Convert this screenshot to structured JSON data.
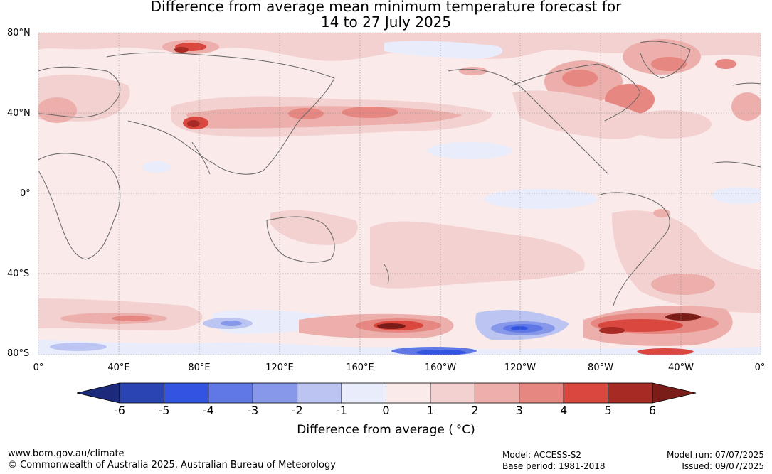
{
  "title_line1": "Difference from average mean minimum temperature forecast for",
  "title_line2": "14 to 27 July 2025",
  "lat_labels": [
    "80°N",
    "40°N",
    "0°",
    "40°S",
    "80°S"
  ],
  "lon_labels": [
    "0°",
    "40°E",
    "80°E",
    "120°E",
    "160°E",
    "160°W",
    "120°W",
    "80°W",
    "40°W",
    "0°"
  ],
  "colorbar": {
    "ticks": [
      "-6",
      "-5",
      "-4",
      "-3",
      "-2",
      "-1",
      "0",
      "1",
      "2",
      "3",
      "4",
      "5",
      "6"
    ],
    "label": "Difference from average (",
    "label_unit": "°C)",
    "colors": {
      "below_min": "#1b2a7a",
      "bins": [
        "#2b44b3",
        "#3354e0",
        "#5f78e6",
        "#8797ea",
        "#bcc5f2",
        "#e9ecfb",
        "#fbeaea",
        "#f4d1d1",
        "#ecafab",
        "#e68782",
        "#d9473f",
        "#a82a25"
      ],
      "above_max": "#7a1d19"
    }
  },
  "footer": {
    "website": "www.bom.gov.au/climate",
    "copyright": "© Commonwealth of Australia 2025, Australian Bureau of Meteorology",
    "model": "Model: ACCESS-S2",
    "base_period": "Base period: 1981-2018",
    "model_run": "Model run: 07/07/2025",
    "issued": "Issued: 09/07/2025"
  }
}
